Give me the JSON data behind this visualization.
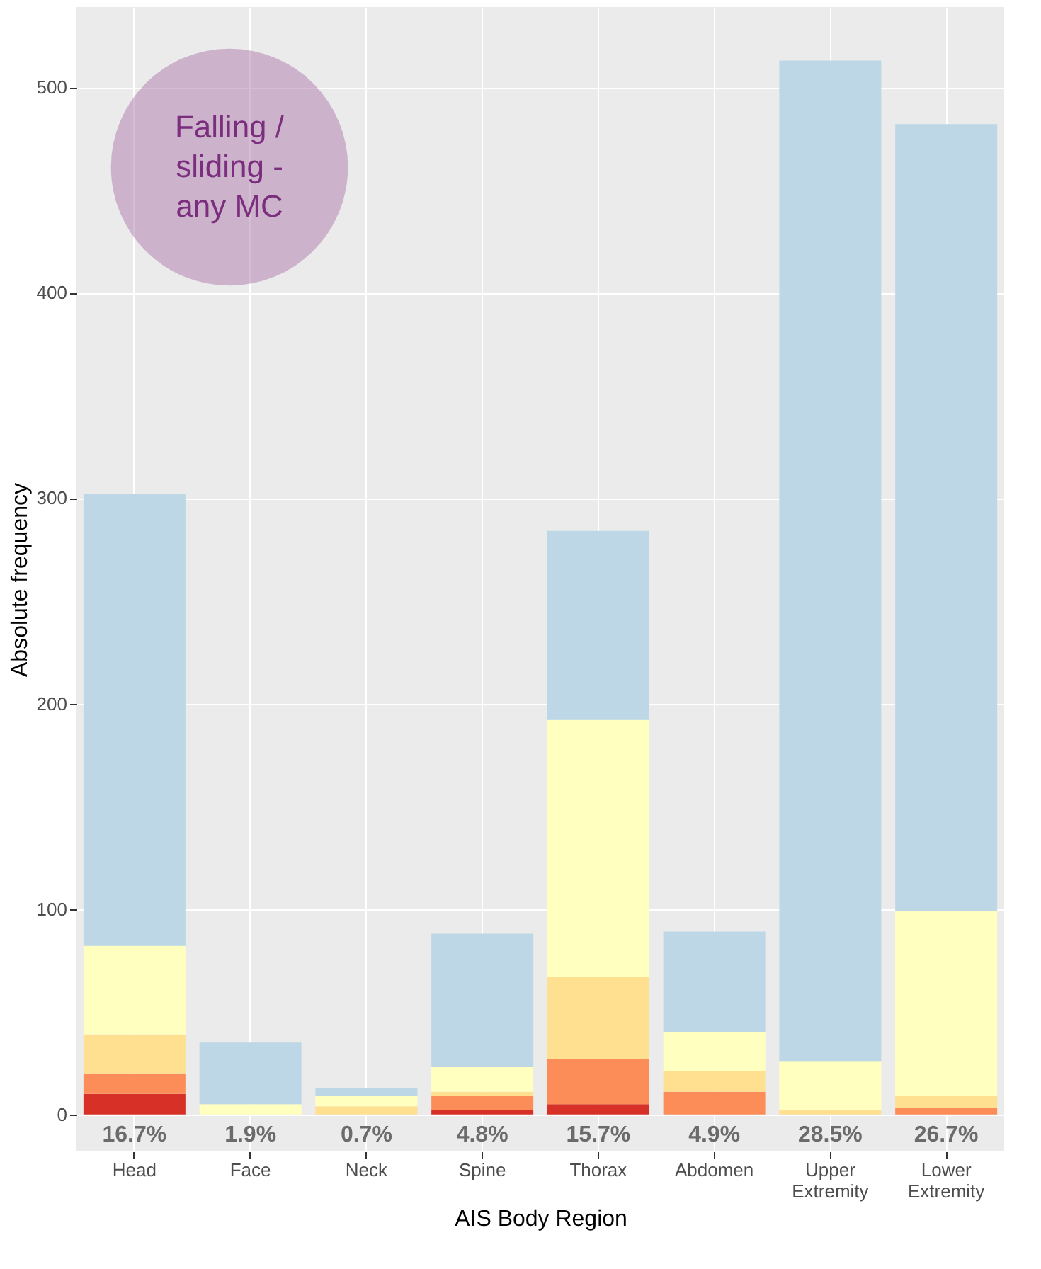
{
  "chart_data": {
    "type": "bar",
    "stacked": true,
    "xlabel": "AIS Body Region",
    "ylabel": "Absolute frequency",
    "categories": [
      "Head",
      "Face",
      "Neck",
      "Spine",
      "Thorax",
      "Abdomen",
      "Upper Extremity",
      "Lower Extremity"
    ],
    "series": [
      {
        "color": "#d73027",
        "values": [
          10,
          0,
          0,
          2,
          5,
          0,
          0,
          0
        ]
      },
      {
        "color": "#fc8d59",
        "values": [
          10,
          0,
          0,
          7,
          22,
          11,
          0,
          3
        ]
      },
      {
        "color": "#fee090",
        "values": [
          19,
          0,
          4,
          2,
          40,
          10,
          2,
          6
        ]
      },
      {
        "color": "#ffffbf",
        "values": [
          43,
          5,
          5,
          12,
          125,
          19,
          24,
          90
        ]
      },
      {
        "color": "#bdd7e7",
        "values": [
          220,
          30,
          4,
          65,
          92,
          49,
          487,
          383
        ]
      }
    ],
    "ylim": [
      -18,
      539
    ],
    "yticks": [
      0,
      100,
      200,
      300,
      400,
      500
    ],
    "grid": true,
    "legend": false,
    "annotations": [
      "16.7%",
      "1.9%",
      "0.7%",
      "4.8%",
      "15.7%",
      "4.9%",
      "28.5%",
      "26.7%",
      "Falling / sliding - any MC"
    ]
  }
}
